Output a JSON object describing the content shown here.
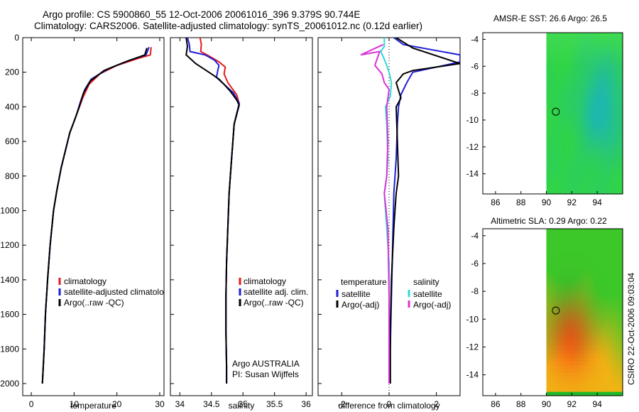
{
  "header": {
    "title_line1": "Argo profile: CS 5900860_55 12-Oct-2006 20061016_396 9.379S 90.744E",
    "title_line2": "Climatology: CARS2006. Satellite-adjusted climatology: synTS_20061012.nc (0.12d earlier)"
  },
  "side_label": "CSIRO 22-Oct-2006 09:03:04",
  "colors": {
    "red": "#e41a1c",
    "blue": "#1f1fd6",
    "black": "#000000",
    "cyan": "#35d8d8",
    "magenta": "#d934d9"
  },
  "chart_data": [
    {
      "type": "line",
      "id": "temperature",
      "xlabel": "temperature",
      "xlim": [
        -2,
        31
      ],
      "ylim": [
        2070,
        0
      ],
      "xticks": [
        0,
        10,
        20,
        30
      ],
      "xtick_labels": [
        "0",
        "10",
        "20",
        "30"
      ],
      "yticks": [
        0,
        200,
        400,
        600,
        800,
        1000,
        1200,
        1400,
        1600,
        1800,
        2000
      ],
      "ytick_labels": [
        "0",
        "200",
        "400",
        "600",
        "800",
        "1000",
        "1200",
        "1400",
        "1600",
        "1800",
        "2000"
      ],
      "series": [
        {
          "name": "climatology",
          "color": "red",
          "points": [
            [
              28,
              55
            ],
            [
              27.8,
              100
            ],
            [
              25,
              120
            ],
            [
              20,
              160
            ],
            [
              16,
              210
            ],
            [
              13.5,
              270
            ],
            [
              12,
              350
            ],
            [
              10.5,
              450
            ],
            [
              9,
              550
            ],
            [
              8,
              650
            ],
            [
              7,
              750
            ],
            [
              6,
              880
            ],
            [
              5.2,
              1000
            ],
            [
              4.4,
              1200
            ],
            [
              3.8,
              1400
            ],
            [
              3.3,
              1600
            ],
            [
              3,
              1800
            ],
            [
              2.6,
              2000
            ]
          ]
        },
        {
          "name": "satellite-adjusted climatology",
          "color": "blue",
          "points": [
            [
              27.5,
              55
            ],
            [
              26.8,
              100
            ],
            [
              23,
              130
            ],
            [
              18,
              180
            ],
            [
              14,
              240
            ],
            [
              12.5,
              300
            ],
            [
              11.5,
              370
            ],
            [
              10.5,
              450
            ],
            [
              9,
              550
            ],
            [
              8,
              650
            ],
            [
              7,
              750
            ],
            [
              6,
              880
            ],
            [
              5.2,
              1000
            ],
            [
              4.4,
              1200
            ],
            [
              3.8,
              1400
            ],
            [
              3.3,
              1600
            ],
            [
              3,
              1800
            ],
            [
              2.6,
              2000
            ]
          ]
        },
        {
          "name": "Argo(..raw -QC)",
          "color": "black",
          "points": [
            [
              27,
              60
            ],
            [
              26.5,
              100
            ],
            [
              22,
              140
            ],
            [
              17,
              190
            ],
            [
              13.8,
              250
            ],
            [
              12.2,
              320
            ],
            [
              11.2,
              400
            ],
            [
              10.2,
              470
            ],
            [
              9,
              550
            ],
            [
              8,
              650
            ],
            [
              7,
              750
            ],
            [
              6,
              880
            ],
            [
              5.2,
              1000
            ],
            [
              4.4,
              1200
            ],
            [
              3.8,
              1400
            ],
            [
              3.3,
              1600
            ],
            [
              3,
              1800
            ],
            [
              2.6,
              2000
            ]
          ]
        }
      ],
      "legend": {
        "position": "bottom-right",
        "entries": [
          "climatology",
          "satellite-adjusted climatology",
          "Argo(..raw -QC)"
        ]
      }
    },
    {
      "type": "line",
      "id": "salinity",
      "xlabel": "salinity",
      "xlim": [
        33.85,
        36.1
      ],
      "ylim": [
        2070,
        0
      ],
      "xticks": [
        34,
        34.5,
        35,
        35.5,
        36
      ],
      "xtick_labels": [
        "34",
        "34.5",
        "35",
        "35.5",
        "36"
      ],
      "series": [
        {
          "name": "climatology",
          "color": "red",
          "points": [
            [
              34.32,
              0
            ],
            [
              34.34,
              40
            ],
            [
              34.33,
              80
            ],
            [
              34.48,
              110
            ],
            [
              34.62,
              140
            ],
            [
              34.72,
              170
            ],
            [
              34.7,
              210
            ],
            [
              34.76,
              260
            ],
            [
              34.9,
              330
            ],
            [
              34.94,
              380
            ],
            [
              34.86,
              500
            ],
            [
              34.82,
              700
            ],
            [
              34.78,
              900
            ],
            [
              34.76,
              1100
            ],
            [
              34.74,
              1300
            ],
            [
              34.73,
              1500
            ],
            [
              34.73,
              1700
            ],
            [
              34.74,
              1900
            ],
            [
              34.74,
              2000
            ]
          ]
        },
        {
          "name": "satellite adj. clim.",
          "color": "blue",
          "points": [
            [
              34.12,
              0
            ],
            [
              34.15,
              40
            ],
            [
              34.16,
              80
            ],
            [
              34.4,
              100
            ],
            [
              34.55,
              130
            ],
            [
              34.62,
              160
            ],
            [
              34.6,
              190
            ],
            [
              34.58,
              230
            ],
            [
              34.7,
              270
            ],
            [
              34.85,
              320
            ],
            [
              34.94,
              380
            ],
            [
              34.86,
              500
            ],
            [
              34.82,
              700
            ],
            [
              34.78,
              900
            ],
            [
              34.76,
              1100
            ],
            [
              34.74,
              1300
            ],
            [
              34.73,
              1500
            ],
            [
              34.73,
              1700
            ],
            [
              34.74,
              1900
            ],
            [
              34.74,
              2000
            ]
          ]
        },
        {
          "name": "Argo(..raw -QC)",
          "color": "black",
          "points": [
            [
              34.1,
              0
            ],
            [
              34.12,
              50
            ],
            [
              34.1,
              100
            ],
            [
              34.25,
              150
            ],
            [
              34.5,
              210
            ],
            [
              34.62,
              240
            ],
            [
              34.7,
              270
            ],
            [
              34.8,
              310
            ],
            [
              34.9,
              360
            ],
            [
              34.94,
              390
            ],
            [
              34.86,
              500
            ],
            [
              34.82,
              700
            ],
            [
              34.78,
              900
            ],
            [
              34.76,
              1100
            ],
            [
              34.74,
              1300
            ],
            [
              34.73,
              1500
            ],
            [
              34.73,
              1700
            ],
            [
              34.74,
              1900
            ],
            [
              34.74,
              2000
            ]
          ]
        }
      ],
      "legend": {
        "position": "bottom-right",
        "entries": [
          "climatology",
          "satellite adj. clim.",
          "Argo(..raw -QC)"
        ]
      },
      "annotation": [
        "Argo AUSTRALIA",
        "PI: Susan Wijffels"
      ]
    },
    {
      "type": "line",
      "id": "difference",
      "xlabel": "difference from climatology",
      "xlim": [
        -3,
        3
      ],
      "ylim": [
        2070,
        0
      ],
      "xticks": [
        -2,
        0,
        2
      ],
      "xtick_labels": [
        "-2",
        "0",
        "2"
      ],
      "series": [
        {
          "name": "temperature satellite",
          "color": "blue",
          "points": [
            [
              0.2,
              0
            ],
            [
              0.6,
              40
            ],
            [
              3,
              100
            ],
            [
              3,
              140
            ],
            [
              1,
              200
            ],
            [
              0.75,
              260
            ],
            [
              0.5,
              330
            ],
            [
              0.4,
              400
            ],
            [
              0.35,
              500
            ],
            [
              0.3,
              700
            ],
            [
              0.2,
              900
            ],
            [
              0.15,
              1200
            ],
            [
              0.1,
              1500
            ],
            [
              0.05,
              1800
            ],
            [
              0.05,
              2000
            ]
          ]
        },
        {
          "name": "temperature Argo(-adj)",
          "color": "black",
          "points": [
            [
              0.3,
              0
            ],
            [
              1,
              60
            ],
            [
              3,
              150
            ],
            [
              2,
              170
            ],
            [
              1,
              190
            ],
            [
              0.6,
              210
            ],
            [
              0.3,
              260
            ],
            [
              0.5,
              350
            ],
            [
              0.3,
              400
            ],
            [
              0.35,
              600
            ],
            [
              0.4,
              800
            ],
            [
              0.3,
              900
            ],
            [
              0.25,
              1000
            ],
            [
              0.2,
              1100
            ],
            [
              0.1,
              1400
            ],
            [
              0.05,
              1700
            ],
            [
              0.05,
              2000
            ]
          ]
        },
        {
          "name": "salinity satellite",
          "color": "cyan",
          "points": [
            [
              -0.2,
              0
            ],
            [
              -0.2,
              50
            ],
            [
              -0.35,
              80
            ],
            [
              -0.25,
              110
            ],
            [
              -0.1,
              160
            ],
            [
              0,
              200
            ],
            [
              0.1,
              260
            ],
            [
              0.05,
              340
            ],
            [
              -0.15,
              400
            ],
            [
              -0.1,
              500
            ],
            [
              -0.05,
              700
            ],
            [
              -0.1,
              800
            ],
            [
              -0.2,
              900
            ],
            [
              -0.1,
              1100
            ],
            [
              0,
              1300
            ],
            [
              0,
              1500
            ],
            [
              0,
              1700
            ],
            [
              0,
              2000
            ]
          ]
        },
        {
          "name": "salinity Argo(-adj)",
          "color": "magenta",
          "points": [
            [
              -0.25,
              40
            ],
            [
              -1.2,
              100
            ],
            [
              -0.4,
              80
            ],
            [
              -0.6,
              160
            ],
            [
              -0.3,
              210
            ],
            [
              -0.2,
              260
            ],
            [
              0,
              300
            ],
            [
              -0.1,
              400
            ],
            [
              -0.05,
              600
            ],
            [
              -0.1,
              800
            ],
            [
              -0.2,
              900
            ],
            [
              -0.05,
              1100
            ],
            [
              0,
              1500
            ],
            [
              0,
              2000
            ]
          ]
        }
      ],
      "legend": {
        "position": "bottom",
        "temperature_title": "temperature",
        "salinity_title": "salinity",
        "entries": [
          "satellite",
          "Argo(-adj)",
          "satellite",
          "Argo(-adj)"
        ]
      }
    },
    {
      "type": "heatmap",
      "id": "sst-map",
      "title": "AMSR-E SST: 26.6 Argo: 26.5",
      "xlim": [
        85,
        96
      ],
      "ylim": [
        -15.5,
        -3.5
      ],
      "xticks": [
        86,
        88,
        90,
        92,
        94
      ],
      "yticks": [
        -4,
        -6,
        -8,
        -10,
        -12,
        -14
      ],
      "data_lon_start": 90,
      "marker": {
        "lon": 90.744,
        "lat": -9.379
      }
    },
    {
      "type": "heatmap",
      "id": "sla-map",
      "title": "Altimetric SLA: 0.29 Argo: 0.22",
      "xlim": [
        85,
        96
      ],
      "ylim": [
        -15.5,
        -3.5
      ],
      "xticks": [
        86,
        88,
        90,
        92,
        94
      ],
      "yticks": [
        -4,
        -6,
        -8,
        -10,
        -12,
        -14
      ],
      "data_lon_start": 90,
      "marker": {
        "lon": 90.744,
        "lat": -9.379
      }
    }
  ]
}
